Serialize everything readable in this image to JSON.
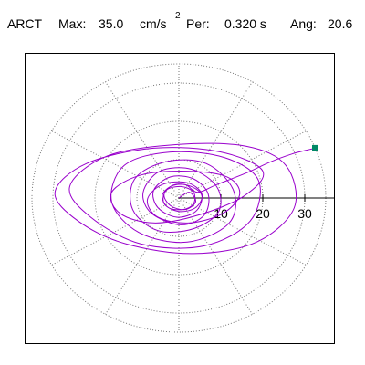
{
  "header": {
    "station": "ARCT",
    "max_label": "Max:",
    "max_value": "35.0",
    "max_unit": "cm/s",
    "max_exponent": "2",
    "period_label": "Per:",
    "period_value": "0.320 s",
    "angle_label": "Ang:",
    "angle_value": "20.6"
  },
  "colors": {
    "trace": "#9900cc",
    "marker": "#008866",
    "grid": "#777777",
    "axis": "#000000",
    "frame": "#000000"
  },
  "chart_data": {
    "type": "scatter",
    "description_of_marks": "particle motion trace (hodogram) on polar grid",
    "rings": [
      10,
      20,
      30
    ],
    "tick_labels": [
      "10",
      "20",
      "30"
    ],
    "rmax": 35.0,
    "radial_spokes_deg": [
      30,
      60,
      90,
      120,
      150,
      210,
      240,
      270,
      300,
      330
    ],
    "grid": true,
    "end_marker": {
      "x": 32.5,
      "y": 13.0
    },
    "series": [
      {
        "points": [
          [
            0.0,
            0.0
          ],
          [
            2.5,
            1.5
          ],
          [
            4.0,
            -1.0
          ],
          [
            1.5,
            -3.0
          ],
          [
            -2.0,
            -2.0
          ],
          [
            -3.5,
            1.0
          ],
          [
            -1.0,
            3.5
          ],
          [
            3.0,
            3.0
          ],
          [
            5.5,
            0.5
          ],
          [
            4.0,
            -3.5
          ],
          [
            -0.5,
            -5.0
          ],
          [
            -5.0,
            -2.5
          ],
          [
            -6.0,
            2.0
          ],
          [
            -2.0,
            5.5
          ],
          [
            3.5,
            5.0
          ],
          [
            7.0,
            1.0
          ],
          [
            6.0,
            -4.5
          ],
          [
            0.5,
            -7.0
          ],
          [
            -6.5,
            -4.0
          ],
          [
            -8.5,
            1.5
          ],
          [
            -4.5,
            7.0
          ],
          [
            3.0,
            7.5
          ],
          [
            9.0,
            3.0
          ],
          [
            9.5,
            -3.5
          ],
          [
            3.5,
            -8.0
          ],
          [
            -5.0,
            -8.5
          ],
          [
            -11.0,
            -3.0
          ],
          [
            -10.5,
            5.0
          ],
          [
            -3.0,
            9.5
          ],
          [
            6.5,
            9.0
          ],
          [
            13.0,
            2.0
          ],
          [
            12.0,
            -6.5
          ],
          [
            2.0,
            -11.5
          ],
          [
            -9.5,
            -9.0
          ],
          [
            -16.0,
            -1.0
          ],
          [
            -13.0,
            8.5
          ],
          [
            -2.0,
            12.0
          ],
          [
            11.0,
            10.5
          ],
          [
            19.0,
            4.5
          ],
          [
            17.0,
            -6.0
          ],
          [
            6.0,
            -12.5
          ],
          [
            -9.0,
            -12.0
          ],
          [
            -21.0,
            -5.0
          ],
          [
            -26.0,
            3.0
          ],
          [
            -17.0,
            11.0
          ],
          [
            0.0,
            14.0
          ],
          [
            16.0,
            13.5
          ],
          [
            25.5,
            8.5
          ],
          [
            27.5,
            -2.5
          ],
          [
            18.5,
            -11.5
          ],
          [
            3.5,
            -14.5
          ],
          [
            -12.5,
            -12.0
          ],
          [
            -24.0,
            -6.0
          ],
          [
            -29.5,
            1.5
          ],
          [
            -22.0,
            9.0
          ],
          [
            -6.0,
            13.0
          ],
          [
            10.0,
            12.0
          ],
          [
            20.0,
            7.0
          ],
          [
            15.5,
            0.5
          ],
          [
            4.5,
            -4.5
          ],
          [
            -6.0,
            -6.5
          ],
          [
            -14.0,
            -4.0
          ],
          [
            -16.0,
            1.5
          ],
          [
            -9.0,
            6.0
          ],
          [
            2.0,
            7.0
          ],
          [
            11.5,
            5.5
          ],
          [
            14.5,
            1.0
          ],
          [
            10.5,
            -4.0
          ],
          [
            2.5,
            -6.5
          ],
          [
            -5.0,
            -5.0
          ],
          [
            -7.5,
            -0.5
          ],
          [
            -4.0,
            3.5
          ],
          [
            2.0,
            4.0
          ],
          [
            5.5,
            1.0
          ],
          [
            4.0,
            -2.5
          ],
          [
            0.0,
            -3.5
          ],
          [
            -3.5,
            -1.5
          ],
          [
            -3.0,
            2.0
          ],
          [
            0.5,
            3.0
          ],
          [
            3.5,
            1.5
          ],
          [
            3.5,
            -1.5
          ],
          [
            1.0,
            -3.0
          ],
          [
            -2.5,
            -2.5
          ],
          [
            -4.0,
            0.5
          ],
          [
            -2.0,
            3.0
          ],
          [
            1.5,
            3.5
          ],
          [
            4.5,
            1.5
          ],
          [
            9.0,
            3.5
          ],
          [
            16.0,
            6.5
          ],
          [
            22.0,
            9.5
          ],
          [
            27.0,
            11.5
          ],
          [
            30.5,
            12.5
          ],
          [
            32.5,
            13.0
          ]
        ]
      }
    ]
  }
}
